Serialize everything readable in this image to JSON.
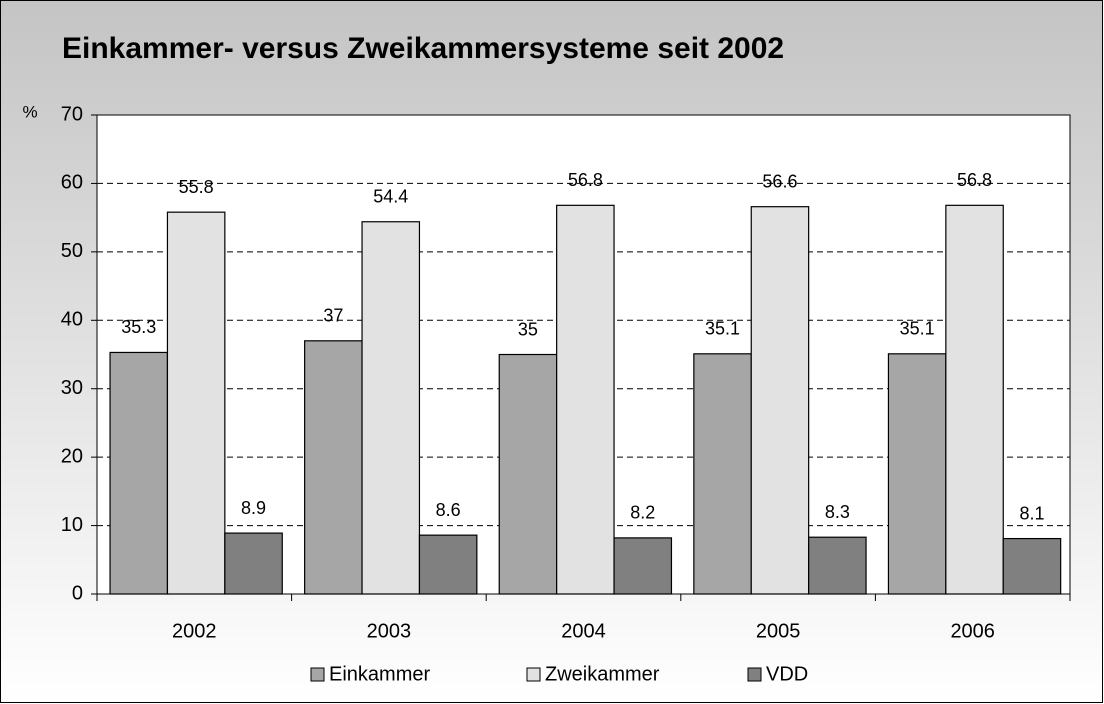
{
  "chart_data": {
    "type": "bar",
    "title": "Einkammer- versus Zweikammersysteme seit 2002",
    "ylabel": "%",
    "categories": [
      "2002",
      "2003",
      "2004",
      "2005",
      "2006"
    ],
    "series": [
      {
        "name": "Einkammer",
        "color": "#a6a6a6",
        "values": [
          35.3,
          37,
          35,
          35.1,
          35.1
        ]
      },
      {
        "name": "Zweikammer",
        "color": "#e2e2e2",
        "values": [
          55.8,
          54.4,
          56.8,
          56.6,
          56.8
        ]
      },
      {
        "name": "VDD",
        "color": "#808080",
        "values": [
          8.9,
          8.6,
          8.2,
          8.3,
          8.1
        ]
      }
    ],
    "ylim": [
      0,
      70
    ],
    "yticks": [
      0,
      10,
      20,
      30,
      40,
      50,
      60,
      70
    ],
    "grid": true
  }
}
